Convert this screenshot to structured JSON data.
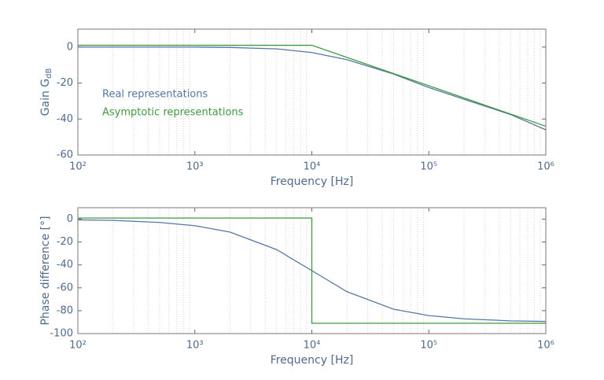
{
  "chart_data": [
    {
      "type": "line",
      "xlabel": "Frequency [Hz]",
      "ylabel": "Gain G",
      "ylabel_subscript": "dB",
      "xscale": "log",
      "xlim": [
        100,
        1000000
      ],
      "xticks": [
        {
          "value": 100,
          "label": "10²"
        },
        {
          "value": 1000,
          "label": "10³"
        },
        {
          "value": 10000,
          "label": "10⁴"
        },
        {
          "value": 100000,
          "label": "10⁵"
        },
        {
          "value": 1000000,
          "label": "10⁶"
        }
      ],
      "ylim": [
        -60,
        10
      ],
      "yticks": [
        -60,
        -40,
        -20,
        0
      ],
      "grid": "minor-x",
      "legend": "left",
      "series": [
        {
          "name": "Real representations",
          "color": "#5677a6",
          "x": [
            100,
            200,
            500,
            1000,
            2000,
            5000,
            10000,
            20000,
            50000,
            100000,
            200000,
            500000,
            1000000
          ],
          "values": [
            0,
            0,
            0,
            0,
            -0.2,
            -1,
            -3,
            -7,
            -15,
            -22.5,
            -29,
            -37.5,
            -46
          ]
        },
        {
          "name": "Asymptotic representations",
          "color": "#3f9a3f",
          "x": [
            100,
            10000,
            1000000
          ],
          "values": [
            1,
            1,
            -44
          ]
        }
      ]
    },
    {
      "type": "line",
      "xlabel": "Frequency [Hz]",
      "ylabel": "Phase difference [°]",
      "xscale": "log",
      "xlim": [
        100,
        1000000
      ],
      "xticks": [
        {
          "value": 100,
          "label": "10²"
        },
        {
          "value": 1000,
          "label": "10³"
        },
        {
          "value": 10000,
          "label": "10⁴"
        },
        {
          "value": 100000,
          "label": "10⁵"
        },
        {
          "value": 1000000,
          "label": "10⁶"
        }
      ],
      "ylim": [
        -100,
        10
      ],
      "yticks": [
        -100,
        -80,
        -60,
        -40,
        -20,
        0
      ],
      "grid": "minor-x",
      "series": [
        {
          "color": "#5677a6",
          "x": [
            100,
            200,
            500,
            1000,
            2000,
            5000,
            10000,
            20000,
            50000,
            100000,
            200000,
            500000,
            1000000
          ],
          "values": [
            -0.6,
            -1.1,
            -2.9,
            -5.7,
            -11.3,
            -26.6,
            -45,
            -63.4,
            -78.7,
            -84.3,
            -87.1,
            -88.9,
            -89.4
          ]
        },
        {
          "color": "#3f9a3f",
          "x": [
            100,
            10000,
            10000,
            1000000
          ],
          "values": [
            1,
            1,
            -91,
            -91
          ]
        }
      ]
    }
  ]
}
